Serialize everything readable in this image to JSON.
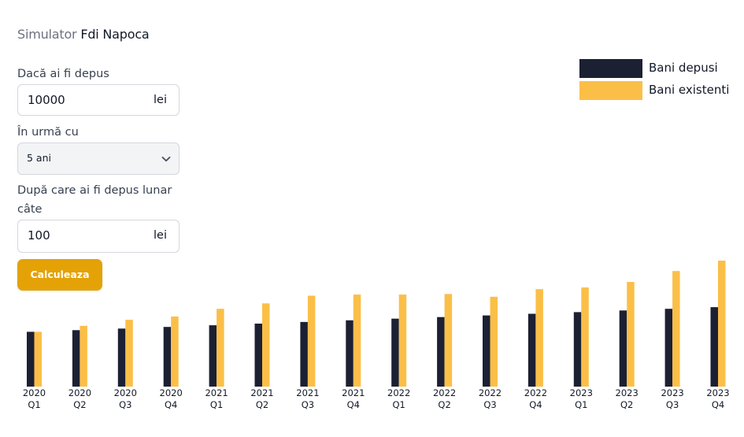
{
  "title": {
    "prefix": "Simulator",
    "name": "Fdi Napoca"
  },
  "form": {
    "deposit_label": "Dacă ai fi depus",
    "deposit_value": "10000",
    "deposit_unit": "lei",
    "period_label": "În urmă cu",
    "period_value": "5 ani",
    "monthly_label": "După care ai fi depus lunar câte",
    "monthly_value": "100",
    "monthly_unit": "lei",
    "submit_label": "Calculeaza"
  },
  "legend": {
    "deposited": "Bani depusi",
    "existing": "Bani existenti"
  },
  "colors": {
    "deposited": "#1c2033",
    "existing": "#fbbf48",
    "accent": "#e4a207"
  },
  "chart_data": {
    "type": "bar",
    "categories": [
      [
        "2020",
        "Q1"
      ],
      [
        "2020",
        "Q2"
      ],
      [
        "2020",
        "Q3"
      ],
      [
        "2020",
        "Q4"
      ],
      [
        "2021",
        "Q1"
      ],
      [
        "2021",
        "Q2"
      ],
      [
        "2021",
        "Q3"
      ],
      [
        "2021",
        "Q4"
      ],
      [
        "2022",
        "Q1"
      ],
      [
        "2022",
        "Q2"
      ],
      [
        "2022",
        "Q3"
      ],
      [
        "2022",
        "Q4"
      ],
      [
        "2023",
        "Q1"
      ],
      [
        "2023",
        "Q2"
      ],
      [
        "2023",
        "Q3"
      ],
      [
        "2023",
        "Q4"
      ]
    ],
    "series": [
      {
        "name": "Bani depusi",
        "values": [
          10000,
          10300,
          10600,
          10900,
          11200,
          11500,
          11800,
          12100,
          12400,
          12700,
          13000,
          13300,
          13600,
          13900,
          14200,
          14500
        ]
      },
      {
        "name": "Bani existenti",
        "values": [
          10000,
          11100,
          12200,
          12800,
          14200,
          15200,
          16600,
          16800,
          16800,
          16900,
          16400,
          17800,
          18100,
          19100,
          21100,
          23000
        ]
      }
    ],
    "ylim": [
      0,
      24000
    ],
    "grid": false,
    "legend": "top-right"
  }
}
